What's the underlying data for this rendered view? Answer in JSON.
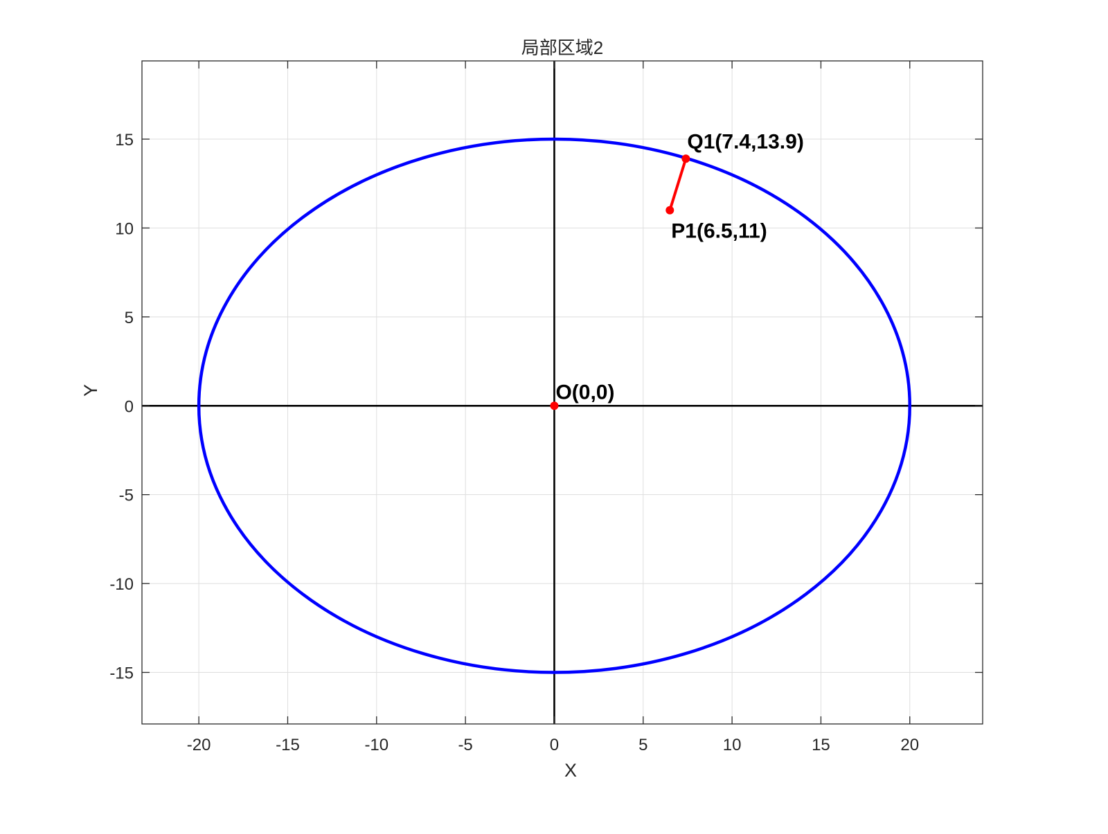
{
  "chart_data": {
    "type": "line",
    "title": "局部区域2",
    "xlabel": "X",
    "ylabel": "Y",
    "xlim": [
      -23.2,
      24.1
    ],
    "ylim": [
      -17.9,
      19.4
    ],
    "xticks": [
      -20,
      -15,
      -10,
      -5,
      0,
      5,
      10,
      15,
      20
    ],
    "yticks": [
      -15,
      -10,
      -5,
      0,
      5,
      10,
      15
    ],
    "grid": true,
    "colors": {
      "ellipse": "#0000ff",
      "segment": "#ff0000",
      "axes_lines": "#000000",
      "points": "#ff0000"
    },
    "ellipse": {
      "center": [
        0,
        0
      ],
      "semi_axis_x": 20,
      "semi_axis_y": 15
    },
    "segment": {
      "from": [
        6.5,
        11
      ],
      "to": [
        7.4,
        13.9
      ]
    },
    "points": [
      {
        "x": 0,
        "y": 0,
        "label": "O(0,0)"
      },
      {
        "x": 6.5,
        "y": 11,
        "label": "P1(6.5,11)"
      },
      {
        "x": 7.4,
        "y": 13.9,
        "label": "Q1(7.4,13.9)"
      }
    ]
  }
}
